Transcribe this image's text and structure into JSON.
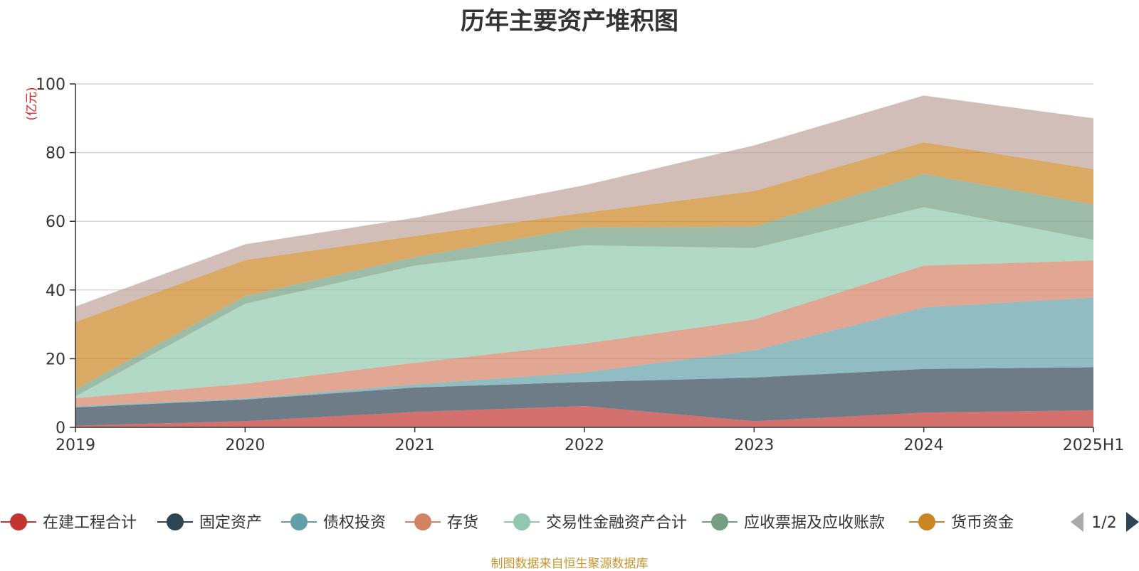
{
  "colors": {
    "在建工程合计": "#c23531",
    "固定资产": "#2f4554",
    "债权投资": "#61a0a8",
    "存货": "#d48265",
    "交易性金融资产合计": "#91c7ae",
    "应收票据及应收账款": "#749f83",
    "货币资金": "#ca8622",
    "其他": "#bda29a"
  },
  "legend": {
    "page_indicator": "1/2",
    "prev_icon": "triangle-left-icon",
    "next_icon": "triangle-right-icon"
  },
  "source_note": "制图数据来自恒生聚源数据库",
  "chart_data": {
    "type": "area",
    "stacked": true,
    "title": "历年主要资产堆积图",
    "ylabel": "(亿元)",
    "ylim": [
      0,
      100
    ],
    "yticks": [
      0,
      20,
      40,
      60,
      80,
      100
    ],
    "grid": true,
    "legend_position": "bottom",
    "x": [
      "2019",
      "2020",
      "2021",
      "2022",
      "2023",
      "2024",
      "2025H1"
    ],
    "series": [
      {
        "name": "在建工程合计",
        "values": [
          0.5,
          1.8,
          4.5,
          6.2,
          1.8,
          4.3,
          5.0
        ]
      },
      {
        "name": "固定资产",
        "values": [
          5.3,
          6.3,
          7.1,
          7.0,
          12.7,
          12.7,
          12.5
        ]
      },
      {
        "name": "债权投资",
        "values": [
          0.4,
          0.3,
          0.9,
          2.8,
          7.9,
          17.9,
          20.3
        ]
      },
      {
        "name": "存货",
        "values": [
          2.3,
          4.3,
          6.3,
          8.4,
          9.0,
          12.2,
          10.8
        ]
      },
      {
        "name": "交易性金融资产合计",
        "values": [
          0.5,
          23.3,
          28.3,
          28.6,
          20.8,
          17.0,
          6.0
        ]
      },
      {
        "name": "应收票据及应收账款",
        "values": [
          2.0,
          2.2,
          2.5,
          5.2,
          6.2,
          9.7,
          10.3
        ]
      },
      {
        "name": "货币资金",
        "values": [
          19.7,
          10.5,
          6.1,
          4.3,
          10.4,
          9.2,
          10.3
        ]
      },
      {
        "name": "",
        "values": [
          4.5,
          4.6,
          5.3,
          8.0,
          13.3,
          13.6,
          14.8
        ]
      }
    ]
  }
}
